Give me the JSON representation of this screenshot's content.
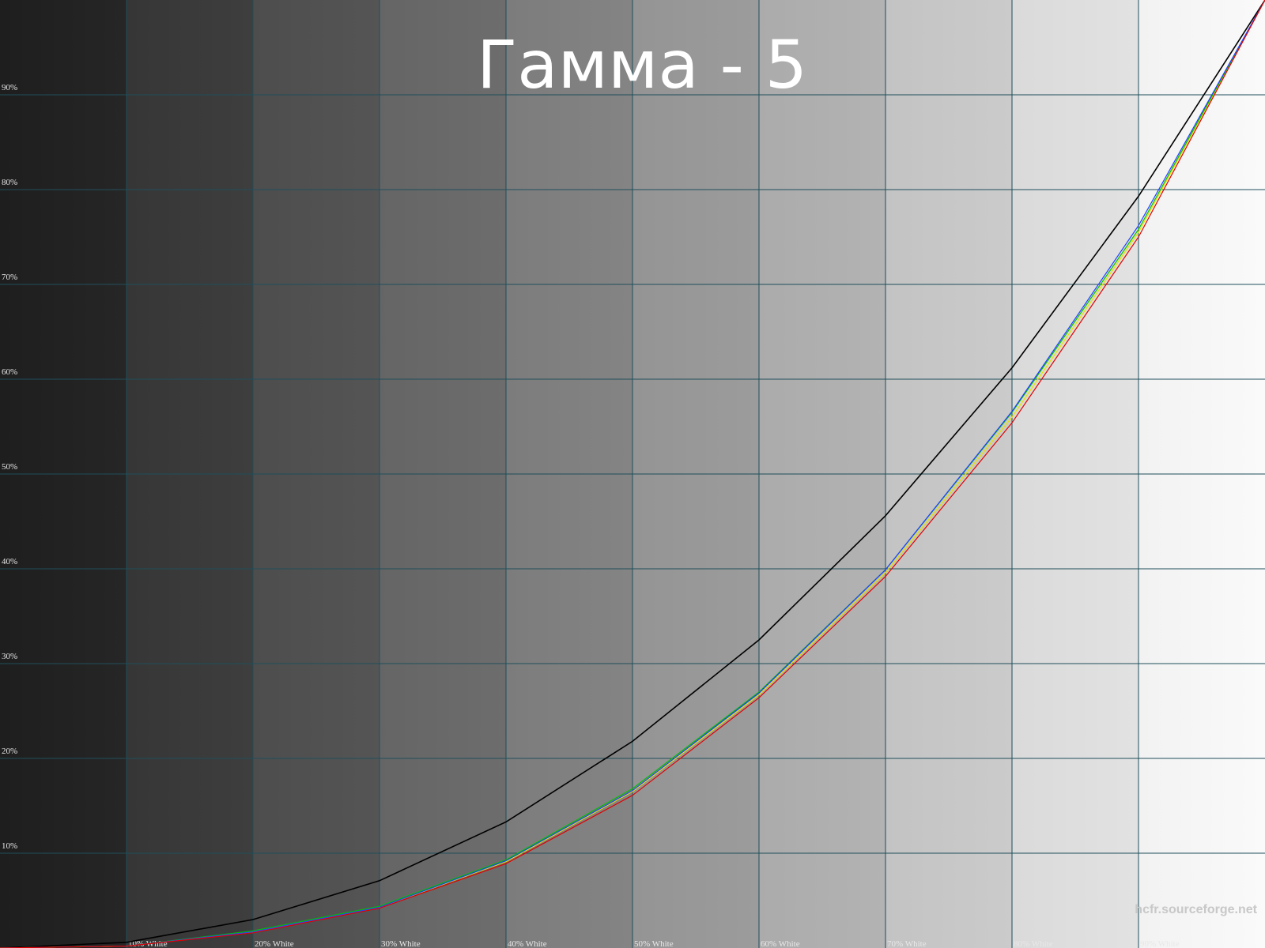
{
  "chart_data": {
    "type": "line",
    "title": "Гамма - 5",
    "watermark": "hcfr.sourceforge.net",
    "x": [
      0,
      10,
      20,
      30,
      40,
      50,
      60,
      70,
      80,
      90,
      100
    ],
    "series": [
      {
        "color": "#000000",
        "values": [
          0,
          0.6,
          3.0,
          7.1,
          13.3,
          21.8,
          32.5,
          45.6,
          61.2,
          79.3,
          100
        ]
      },
      {
        "color": "#e8e000",
        "values": [
          0,
          0.2,
          1.7,
          4.3,
          9.1,
          16.5,
          26.7,
          39.6,
          56.0,
          75.5,
          100
        ]
      },
      {
        "color": "#00c000",
        "values": [
          0,
          0.2,
          1.8,
          4.4,
          9.3,
          16.8,
          27.0,
          39.9,
          56.5,
          75.8,
          100
        ]
      },
      {
        "color": "#2040ff",
        "values": [
          0,
          0.2,
          1.7,
          4.3,
          9.2,
          16.6,
          26.9,
          39.9,
          56.6,
          76.2,
          100
        ]
      },
      {
        "color": "#e00000",
        "values": [
          0,
          0.2,
          1.6,
          4.2,
          8.9,
          16.1,
          26.4,
          39.2,
          55.4,
          75.0,
          100
        ]
      }
    ],
    "xlim": [
      0,
      100
    ],
    "ylim": [
      0,
      100
    ],
    "xticks": [
      {
        "value": 10,
        "label": "10% White"
      },
      {
        "value": 20,
        "label": "20% White"
      },
      {
        "value": 30,
        "label": "30% White"
      },
      {
        "value": 40,
        "label": "40% White"
      },
      {
        "value": 50,
        "label": "50% White"
      },
      {
        "value": 60,
        "label": "60% White"
      },
      {
        "value": 70,
        "label": "70% White"
      },
      {
        "value": 80,
        "label": "80% White"
      },
      {
        "value": 90,
        "label": "90% White"
      }
    ],
    "yticks": [
      {
        "value": 10,
        "label": "10%"
      },
      {
        "value": 20,
        "label": "20%"
      },
      {
        "value": 30,
        "label": "30%"
      },
      {
        "value": 40,
        "label": "40%"
      },
      {
        "value": 50,
        "label": "50%"
      },
      {
        "value": 60,
        "label": "60%"
      },
      {
        "value": 70,
        "label": "70%"
      },
      {
        "value": 80,
        "label": "80%"
      },
      {
        "value": 90,
        "label": "90%"
      }
    ],
    "grid": true
  }
}
